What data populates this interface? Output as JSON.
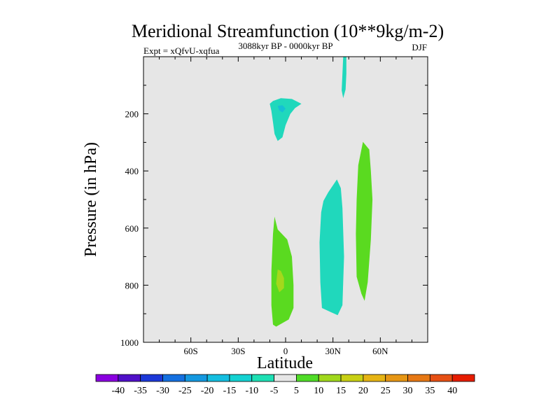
{
  "chart_data": {
    "type": "contour",
    "title": "Meridional Streamfunction (10**9kg/m-2)",
    "experiment_label": "Expt = xQfvU-xqfua",
    "time_label": "3088kyr BP - 0000kyr BP",
    "season_label": "DJF",
    "xlabel": "Latitude",
    "ylabel": "Pressure (in hPa)",
    "xlim": [
      -90,
      90
    ],
    "ylim": [
      1000,
      0
    ],
    "x_ticks": [
      {
        "value": -60,
        "label": "60S"
      },
      {
        "value": -30,
        "label": "30S"
      },
      {
        "value": 0,
        "label": "0"
      },
      {
        "value": 30,
        "label": "30N"
      },
      {
        "value": 60,
        "label": "60N"
      }
    ],
    "y_ticks": [
      {
        "value": 200,
        "label": "200"
      },
      {
        "value": 400,
        "label": "400"
      },
      {
        "value": 600,
        "label": "600"
      },
      {
        "value": 800,
        "label": "800"
      },
      {
        "value": 1000,
        "label": "1000"
      }
    ],
    "background_color": "#e6e6e6",
    "regions": [
      {
        "name": "neg-upper-tropics",
        "level": "-10 to -5",
        "color": "#20d8bc",
        "points": [
          [
            -8,
            155
          ],
          [
            -3,
            145
          ],
          [
            4,
            148
          ],
          [
            10,
            165
          ],
          [
            6,
            180
          ],
          [
            3,
            200
          ],
          [
            0,
            240
          ],
          [
            -2,
            282
          ],
          [
            -5,
            295
          ],
          [
            -7,
            270
          ],
          [
            -8,
            230
          ],
          [
            -9,
            190
          ],
          [
            -10,
            165
          ]
        ]
      },
      {
        "name": "neg-upper-core",
        "level": "-15 to -10",
        "color": "#15c0d5",
        "points": [
          [
            -5,
            172
          ],
          [
            -2,
            170
          ],
          [
            0,
            182
          ],
          [
            -2,
            195
          ],
          [
            -4,
            188
          ]
        ]
      },
      {
        "name": "neg-upper-streak",
        "level": "-10 to -5",
        "color": "#20d8bc",
        "points": [
          [
            36.5,
            0
          ],
          [
            38.5,
            0
          ],
          [
            38.5,
            60
          ],
          [
            38,
            115
          ],
          [
            36.5,
            145
          ],
          [
            35.5,
            118
          ],
          [
            36,
            60
          ]
        ]
      },
      {
        "name": "neg-midlat-cell",
        "level": "-10 to -5",
        "color": "#20d8bc",
        "points": [
          [
            27,
            475
          ],
          [
            32.5,
            430
          ],
          [
            35,
            460
          ],
          [
            36,
            530
          ],
          [
            37,
            700
          ],
          [
            36,
            870
          ],
          [
            33,
            905
          ],
          [
            29,
            895
          ],
          [
            23,
            880
          ],
          [
            22,
            790
          ],
          [
            21.5,
            650
          ],
          [
            22.5,
            545
          ],
          [
            24,
            505
          ]
        ]
      },
      {
        "name": "pos-tropical-cell",
        "level": "5 to 10",
        "color": "#5ada20",
        "points": [
          [
            -7,
            560
          ],
          [
            -5,
            605
          ],
          [
            1,
            640
          ],
          [
            4,
            700
          ],
          [
            5,
            800
          ],
          [
            5,
            880
          ],
          [
            2,
            920
          ],
          [
            -6,
            945
          ],
          [
            -8,
            938
          ],
          [
            -9,
            870
          ],
          [
            -9,
            750
          ],
          [
            -8,
            620
          ]
        ]
      },
      {
        "name": "pos-tropical-core",
        "level": "10 to 15",
        "color": "#a4d81c",
        "points": [
          [
            -5,
            745
          ],
          [
            -3,
            750
          ],
          [
            -1,
            775
          ],
          [
            -1,
            810
          ],
          [
            -4,
            825
          ],
          [
            -6,
            795
          ]
        ]
      },
      {
        "name": "pos-midlat-cell",
        "level": "5 to 10",
        "color": "#5ada20",
        "points": [
          [
            49,
            298
          ],
          [
            53,
            325
          ],
          [
            54,
            400
          ],
          [
            55,
            500
          ],
          [
            54,
            640
          ],
          [
            52,
            790
          ],
          [
            50,
            855
          ],
          [
            48,
            830
          ],
          [
            45,
            770
          ],
          [
            44.5,
            620
          ],
          [
            45,
            500
          ],
          [
            46,
            380
          ]
        ]
      }
    ],
    "colorbar": {
      "labels": [
        "-40",
        "-35",
        "-30",
        "-25",
        "-20",
        "-15",
        "-10",
        "-5",
        "5",
        "10",
        "15",
        "20",
        "25",
        "30",
        "35",
        "40"
      ],
      "colors": [
        "#8a00e0",
        "#5010c8",
        "#1c38d8",
        "#1470e0",
        "#1498e0",
        "#14bee0",
        "#14d2d2",
        "#1ee0b4",
        "#e6e6e6",
        "#50dc28",
        "#a0d81c",
        "#c8d014",
        "#e6b414",
        "#e69614",
        "#e67814",
        "#e65014",
        "#e61c00"
      ]
    }
  }
}
